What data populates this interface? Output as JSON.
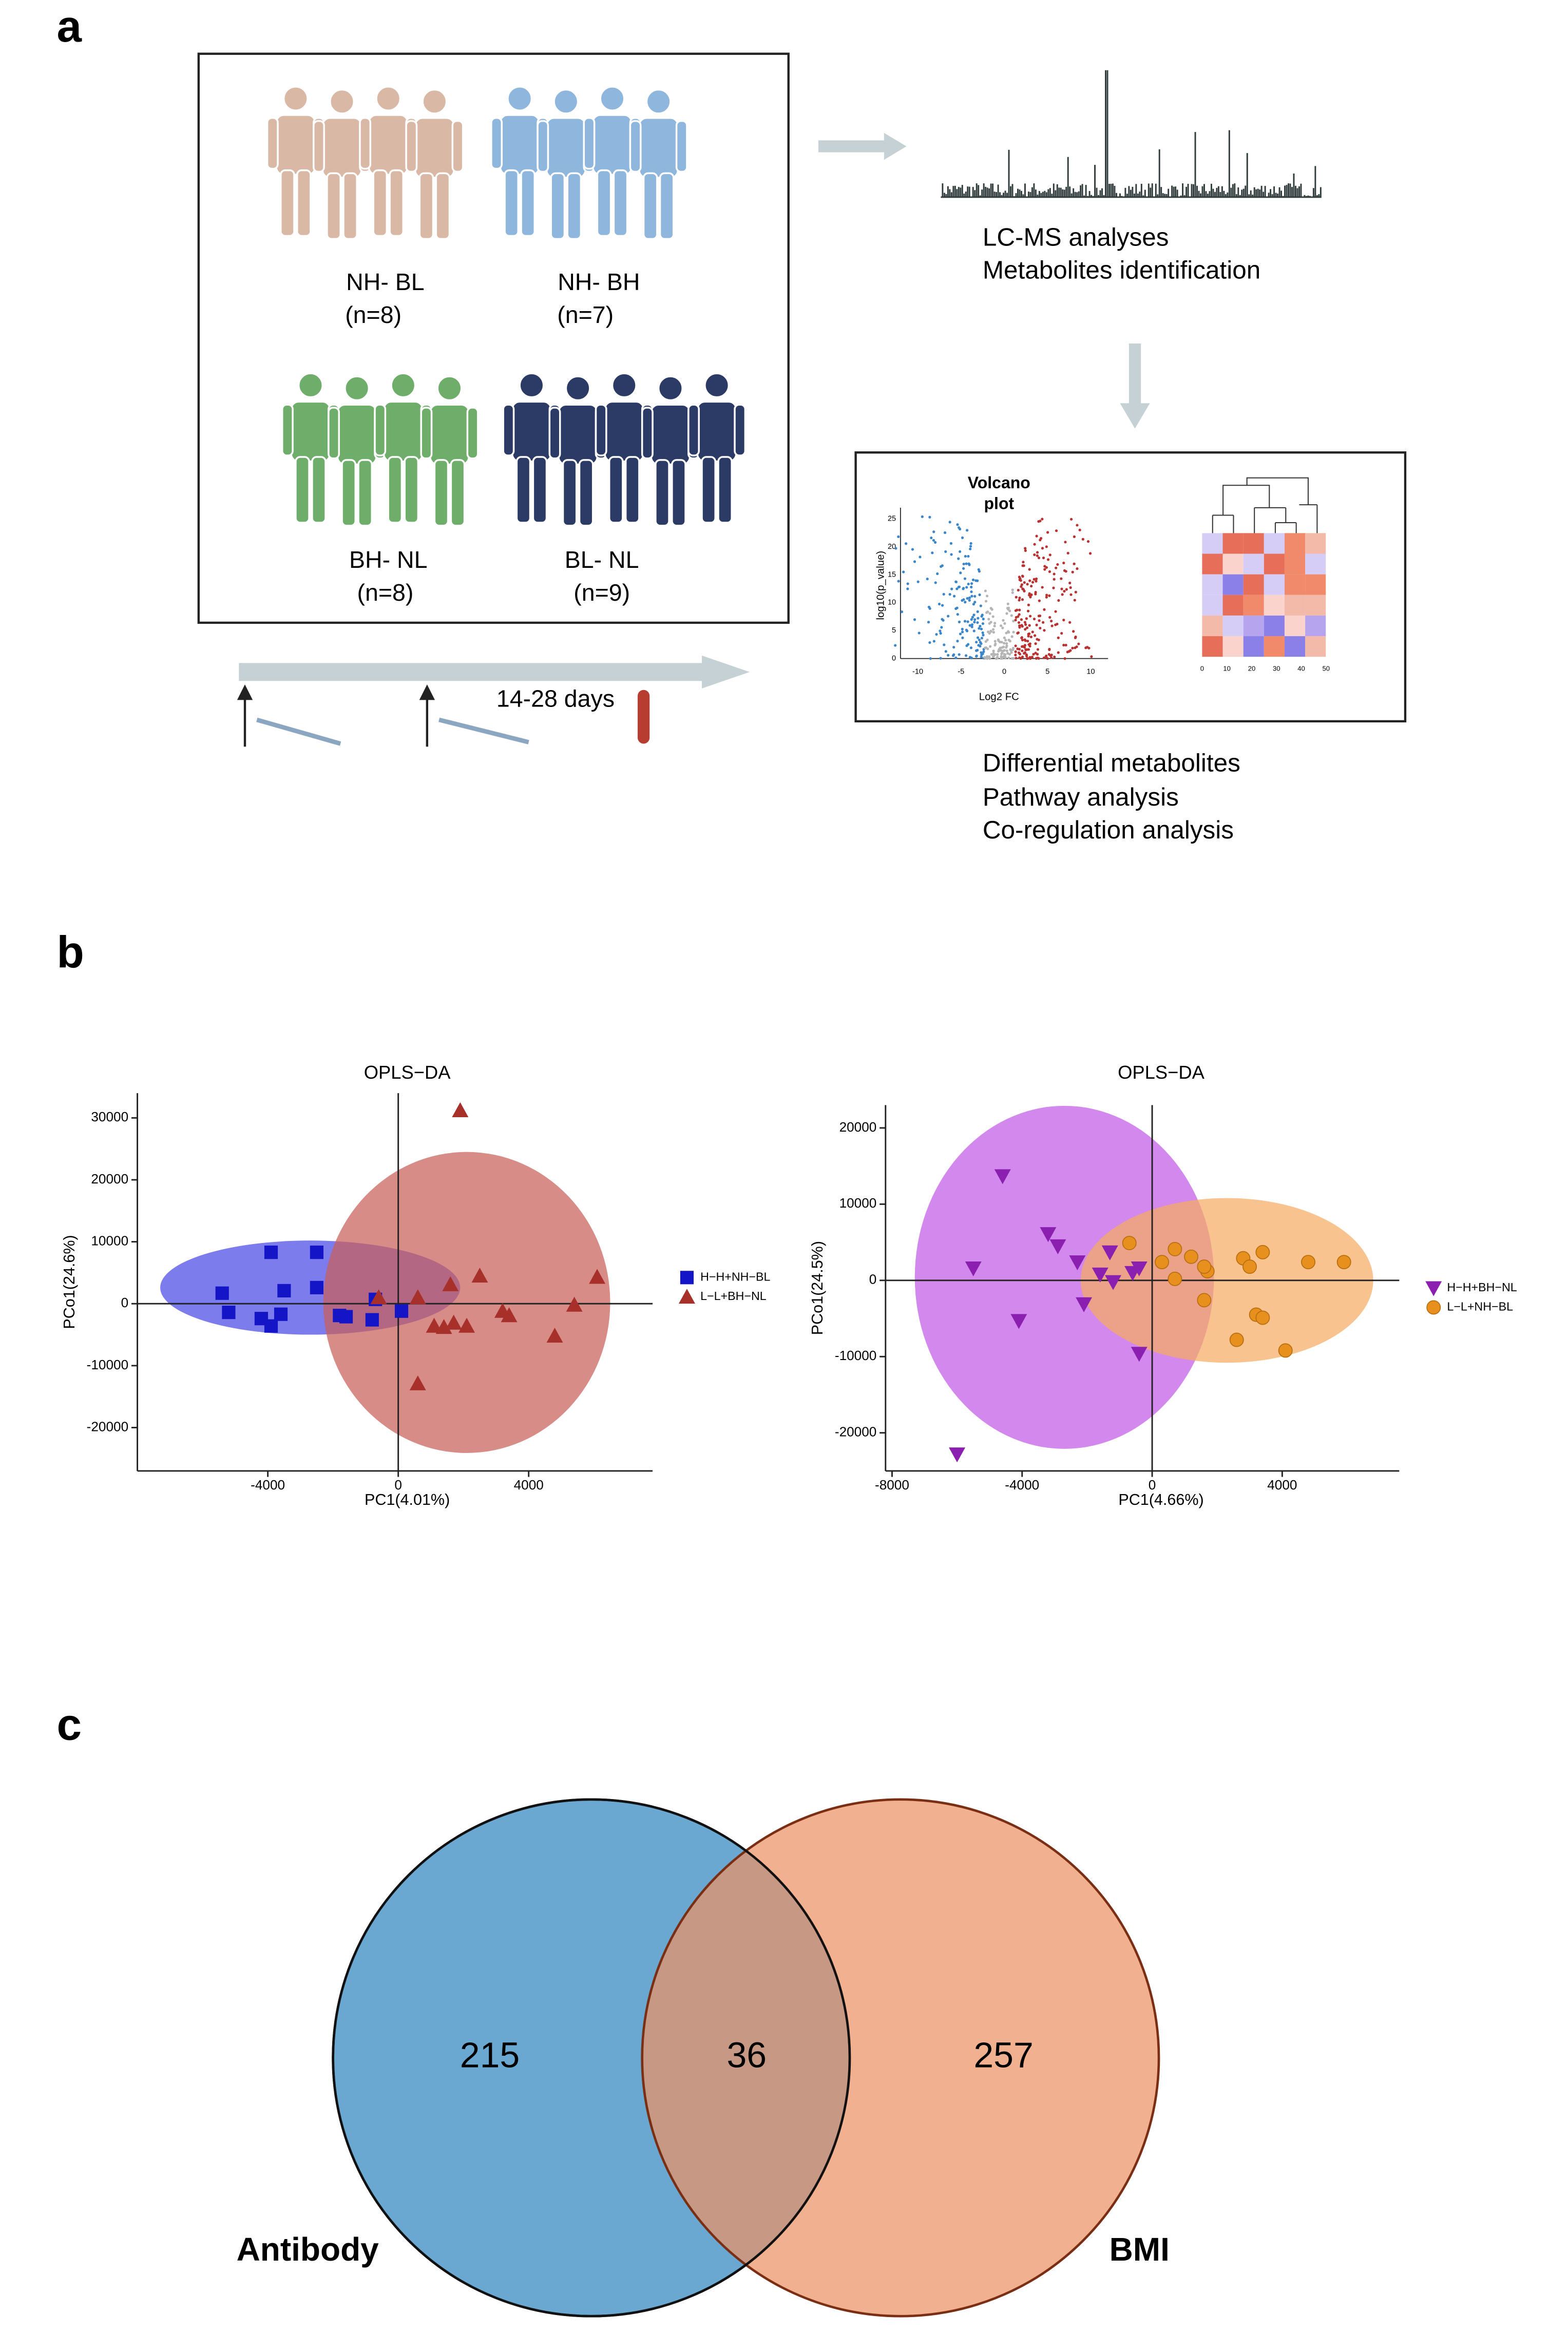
{
  "panel_labels": [
    "a",
    "b",
    "c"
  ],
  "panel_a": {
    "groups": [
      {
        "name": "NH- BL",
        "n": "(n=8)"
      },
      {
        "name": "NH- BH",
        "n": "(n=7)"
      },
      {
        "name": "BH- NL",
        "n": "(n=8)"
      },
      {
        "name": "BL- NL",
        "n": "(n=9)"
      }
    ],
    "timeline": "14-28 days",
    "lcms": [
      "LC-MS analyses",
      "Metabolites identification"
    ],
    "volcano": {
      "title": [
        "Volcano",
        "plot"
      ],
      "ylabel": "log10(p_value)",
      "xlabel": "Log2 FC",
      "xticks": [
        -10,
        -5,
        0,
        5,
        10
      ],
      "yticks": [
        0,
        5,
        10,
        15,
        20,
        25
      ]
    },
    "heatmap": {
      "xticks": [
        0,
        10,
        20,
        30,
        40,
        50
      ]
    },
    "analyses": [
      "Differential metabolites",
      "Pathway analysis",
      "Co-regulation analysis"
    ]
  },
  "chart_data": [
    {
      "type": "scatter",
      "title": "OPLS−DA",
      "x_label": "PC1(4.01%)",
      "y_label": "PCo1(24.6%)",
      "xlim": [
        -8000,
        7800
      ],
      "ylim": [
        -27000,
        34000
      ],
      "xticks": [
        -4000,
        0,
        4000
      ],
      "yticks": [
        -20000,
        -10000,
        0,
        10000,
        20000,
        30000
      ],
      "series": [
        {
          "name": "H−H+NH−BL",
          "color": "#1515c8",
          "marker": "square",
          "x": [
            -5400,
            -5200,
            -3900,
            -4200,
            -3900,
            -3500,
            -3600,
            -2500,
            -2500,
            -1800,
            -1600,
            -800,
            -700,
            100
          ],
          "y": [
            1700,
            -1400,
            8300,
            -2400,
            -3600,
            2100,
            -1700,
            8300,
            2600,
            -1900,
            -2100,
            -2600,
            700,
            -1200
          ],
          "ellipse": {
            "cx": -2700,
            "cy": 2600,
            "rx": 4600,
            "ry": 7600,
            "color": "#4a4ae6"
          }
        },
        {
          "name": "L−L+BH−NL",
          "color": "#a8302a",
          "marker": "triangle",
          "x": [
            1900,
            2500,
            1600,
            600,
            1100,
            1400,
            1700,
            2100,
            600,
            3200,
            3400,
            4800,
            5400,
            6100,
            -600
          ],
          "y": [
            31200,
            4500,
            3100,
            1000,
            -3600,
            -3800,
            -3100,
            -3600,
            -12900,
            -1200,
            -1900,
            -5200,
            -200,
            4300,
            1000
          ],
          "ellipse": {
            "cx": 2100,
            "cy": 200,
            "rx": 4400,
            "ry": 24300,
            "color": "#c9605a"
          }
        }
      ]
    },
    {
      "type": "scatter",
      "title": "OPLS−DA",
      "x_label": "PC1(4.66%)",
      "y_label": "PCo1(24.5%)",
      "xlim": [
        -8200,
        7600
      ],
      "ylim": [
        -25000,
        23000
      ],
      "xticks": [
        -8000,
        -4000,
        0,
        4000
      ],
      "yticks": [
        -20000,
        -10000,
        0,
        10000,
        20000
      ],
      "series": [
        {
          "name": "H−H+BH−NL",
          "color": "#8a1fb0",
          "marker": "triangle-down",
          "x": [
            -4600,
            -5500,
            -3200,
            -2900,
            -2300,
            -4100,
            -2100,
            -1600,
            -1200,
            -1300,
            -600,
            -400,
            -400,
            -6000
          ],
          "y": [
            13700,
            1600,
            6100,
            4500,
            2400,
            -5300,
            -3100,
            800,
            -200,
            3700,
            1000,
            1600,
            -9600,
            -22800
          ],
          "ellipse": {
            "cx": -2700,
            "cy": 400,
            "rx": 4600,
            "ry": 22500,
            "color": "#c25ae6"
          }
        },
        {
          "name": "L−L+NH−BL",
          "color": "#e8901e",
          "marker": "circle",
          "x": [
            -700,
            300,
            700,
            1200,
            700,
            1700,
            1600,
            1600,
            2800,
            3000,
            3400,
            3200,
            3400,
            2600,
            4100,
            4800,
            5900
          ],
          "y": [
            4900,
            2400,
            4100,
            3100,
            200,
            1200,
            1800,
            -2600,
            2900,
            1800,
            3700,
            -4500,
            -4900,
            -7800,
            -9200,
            2400,
            2400
          ],
          "ellipse": {
            "cx": 2300,
            "cy": 0,
            "rx": 4500,
            "ry": 10800,
            "color": "#f5ac62"
          }
        }
      ]
    },
    {
      "type": "venn",
      "sets": [
        {
          "name": "Antibody",
          "color": "#6aa8d2"
        },
        {
          "name": "BMI",
          "color": "#ec9264"
        }
      ],
      "values": [
        215,
        36,
        257
      ]
    }
  ]
}
